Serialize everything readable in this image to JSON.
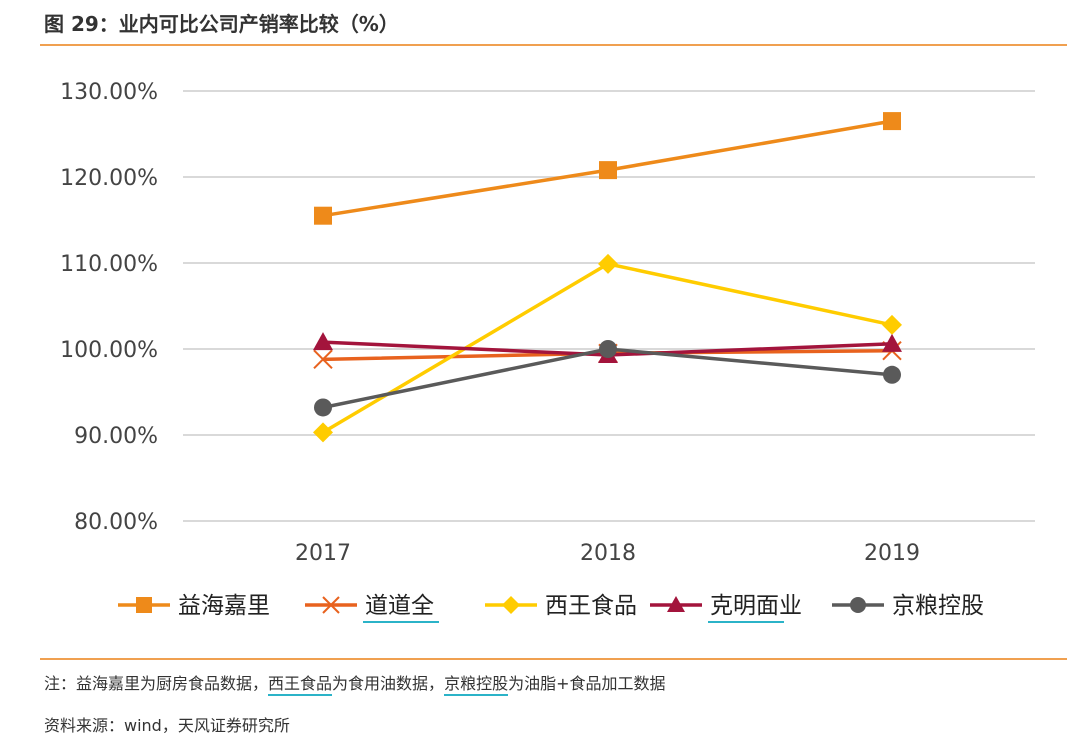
{
  "title": "图 29：业内可比公司产销率比较（%）",
  "notes": {
    "prefix": "注：",
    "part1": "益海嘉里为厨房食品数据，",
    "part2": "西王食品",
    "part3": "为食用油数据，",
    "part4": "京粮控股",
    "part5": "为油脂+食品加工数据"
  },
  "source": "资料来源：wind，天风证券研究所",
  "colors": {
    "grid": "#d9d9d9",
    "rule": "#f0a050",
    "underline": "#2bb3c8"
  },
  "chart_data": {
    "type": "line",
    "title": "",
    "xlabel": "",
    "ylabel": "",
    "categories": [
      "2017",
      "2018",
      "2019"
    ],
    "y_ticks": [
      "80.00%",
      "90.00%",
      "100.00%",
      "110.00%",
      "120.00%",
      "130.00%"
    ],
    "ylim": [
      80,
      130
    ],
    "grid": true,
    "legend_position": "bottom",
    "series": [
      {
        "name": "益海嘉里",
        "values": [
          115.5,
          120.8,
          126.5
        ],
        "color": "#ee8a1a",
        "marker": "square",
        "underlined": false
      },
      {
        "name": "道道全",
        "values": [
          98.8,
          99.5,
          99.8
        ],
        "color": "#e8621e",
        "marker": "x",
        "underlined": true
      },
      {
        "name": "西王食品",
        "values": [
          90.3,
          109.9,
          102.8
        ],
        "color": "#ffcc00",
        "marker": "diamond",
        "underlined": false
      },
      {
        "name": "克明面业",
        "values": [
          100.8,
          99.3,
          100.6
        ],
        "color": "#a3143c",
        "marker": "triangle",
        "underlined": true
      },
      {
        "name": "京粮控股",
        "values": [
          93.2,
          100.0,
          97.0
        ],
        "color": "#5a5a5a",
        "marker": "circle",
        "underlined": false
      }
    ]
  }
}
